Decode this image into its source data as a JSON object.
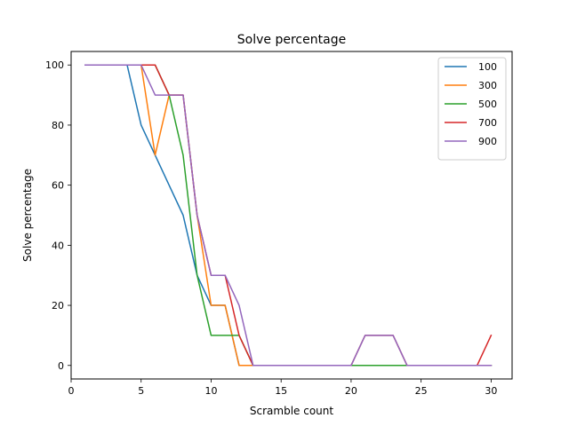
{
  "chart_data": {
    "type": "line",
    "title": "Solve percentage",
    "xlabel": "Scramble count",
    "ylabel": "Solve percentage",
    "xlim": [
      0,
      31.5
    ],
    "ylim": [
      -4.5,
      104.5
    ],
    "xticks": [
      0,
      5,
      10,
      15,
      20,
      25,
      30
    ],
    "yticks": [
      0,
      20,
      40,
      60,
      80,
      100
    ],
    "legend_position": "top-right",
    "grid": false,
    "x": [
      1,
      2,
      3,
      4,
      5,
      6,
      7,
      8,
      9,
      10,
      11,
      12,
      13,
      14,
      15,
      16,
      17,
      18,
      19,
      20,
      21,
      22,
      23,
      24,
      25,
      26,
      27,
      28,
      29,
      30
    ],
    "series": [
      {
        "name": "100",
        "color": "#1f77b4",
        "values": [
          100,
          100,
          100,
          100,
          80,
          70,
          60,
          50,
          30,
          20,
          20,
          0,
          0,
          0,
          0,
          0,
          0,
          0,
          0,
          0,
          0,
          0,
          0,
          0,
          0,
          0,
          0,
          0,
          0,
          0
        ]
      },
      {
        "name": "300",
        "color": "#ff7f0e",
        "values": [
          100,
          100,
          100,
          100,
          100,
          70,
          90,
          90,
          50,
          20,
          20,
          0,
          0,
          0,
          0,
          0,
          0,
          0,
          0,
          0,
          0,
          0,
          0,
          0,
          0,
          0,
          0,
          0,
          0,
          0
        ]
      },
      {
        "name": "500",
        "color": "#2ca02c",
        "values": [
          100,
          100,
          100,
          100,
          100,
          100,
          90,
          70,
          30,
          10,
          10,
          10,
          0,
          0,
          0,
          0,
          0,
          0,
          0,
          0,
          0,
          0,
          0,
          0,
          0,
          0,
          0,
          0,
          0,
          0
        ]
      },
      {
        "name": "700",
        "color": "#d62728",
        "values": [
          100,
          100,
          100,
          100,
          100,
          100,
          90,
          90,
          50,
          30,
          30,
          10,
          0,
          0,
          0,
          0,
          0,
          0,
          0,
          0,
          10,
          10,
          10,
          0,
          0,
          0,
          0,
          0,
          0,
          10
        ]
      },
      {
        "name": "900",
        "color": "#9467bd",
        "values": [
          100,
          100,
          100,
          100,
          100,
          90,
          90,
          90,
          50,
          30,
          30,
          20,
          0,
          0,
          0,
          0,
          0,
          0,
          0,
          0,
          10,
          10,
          10,
          0,
          0,
          0,
          0,
          0,
          0,
          0
        ]
      }
    ]
  }
}
